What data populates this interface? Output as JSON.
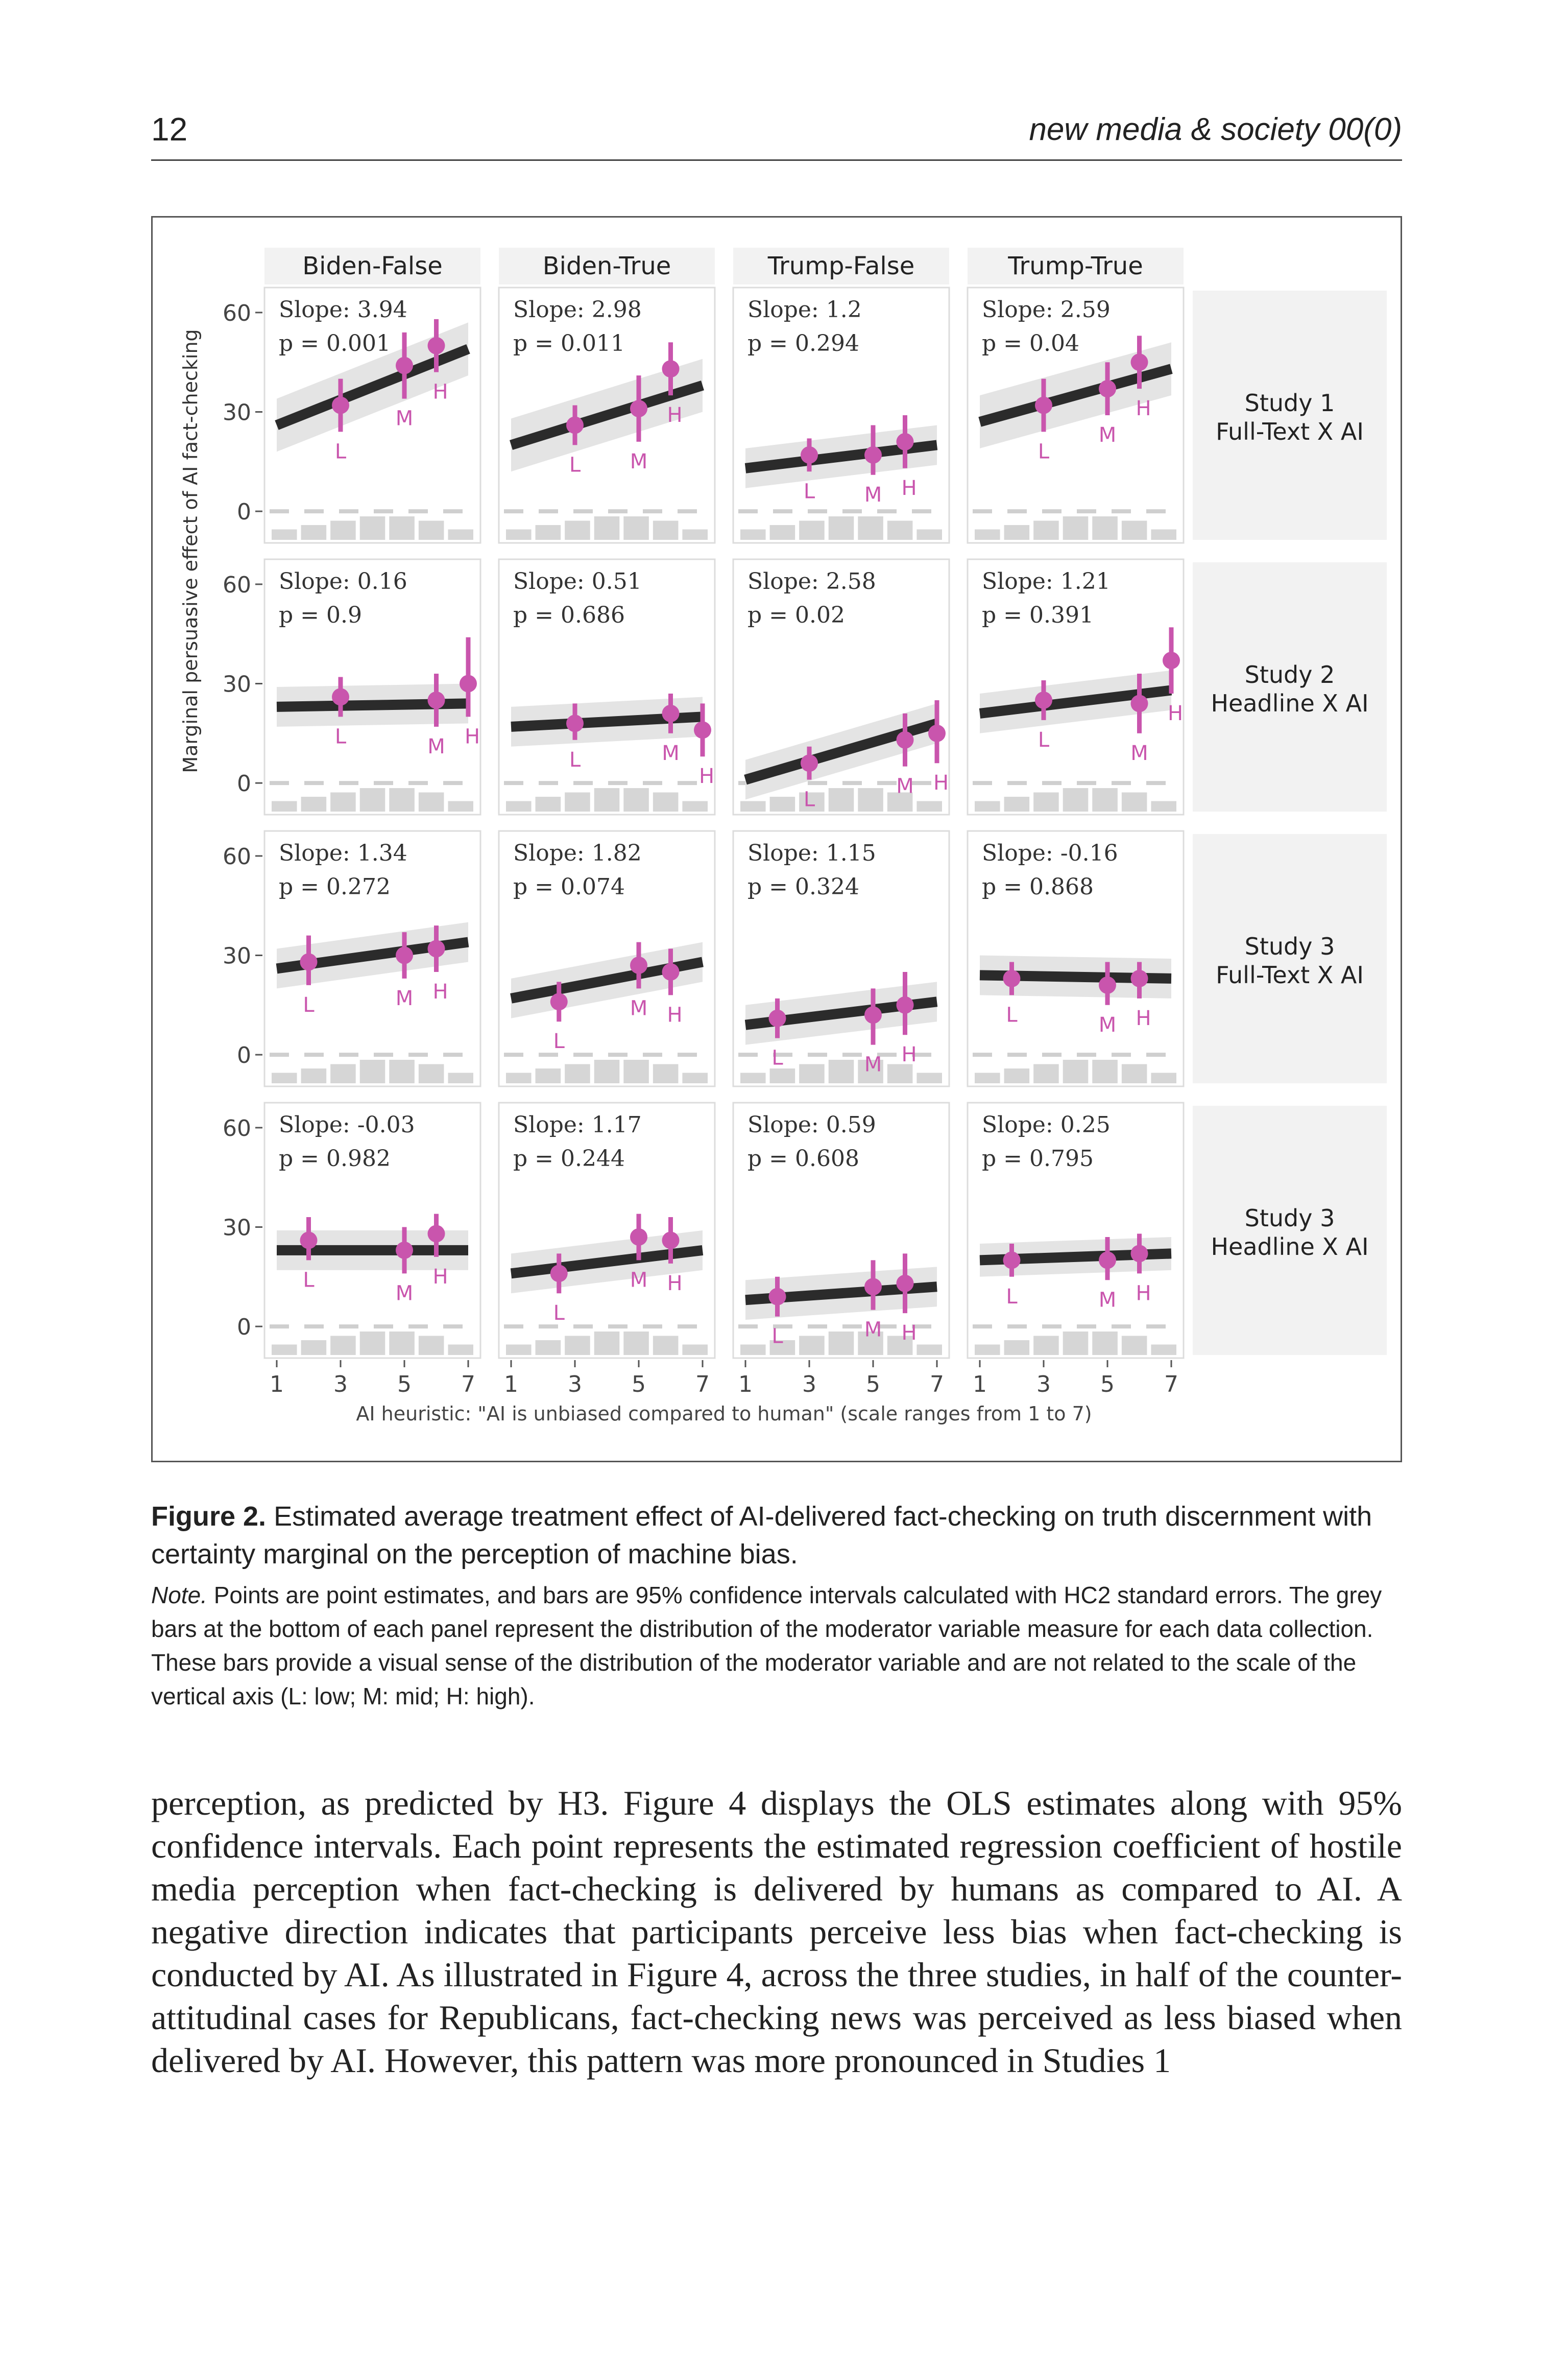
{
  "header": {
    "page_number": "12",
    "journal": "new media & society 00(0)"
  },
  "figure": {
    "column_headers": [
      "Biden-False",
      "Biden-True",
      "Trump-False",
      "Trump-True"
    ],
    "row_labels": [
      [
        "Study 1",
        "Full-Text X AI"
      ],
      [
        "Study 2",
        "Headline X AI"
      ],
      [
        "Study 3",
        "Full-Text X AI"
      ],
      [
        "Study 3",
        "Headline X AI"
      ]
    ],
    "y_axis_label": "Marginal persuasive effect of AI fact-checking",
    "x_axis_label": "AI heuristic: \"AI is unbiased compared to human\" (scale ranges from 1 to 7)"
  },
  "chart_data": {
    "type": "line",
    "xlim": [
      1,
      7
    ],
    "ylim": [
      -8,
      66
    ],
    "x_ticks": [
      1,
      3,
      5,
      7
    ],
    "y_ticks": [
      0,
      30,
      60
    ],
    "point_labels": [
      "L",
      "M",
      "H"
    ],
    "colors": {
      "line": "#2b2b2b",
      "band": "#e4e4e4",
      "points": "#c955ad",
      "hist": "#d6d6d6",
      "panel_bg": "#f2f2f2"
    },
    "panels": [
      {
        "row": 0,
        "col": 0,
        "slope_text": "Slope: 3.94",
        "p_text": "p = 0.001",
        "line": [
          [
            1,
            26
          ],
          [
            7,
            49
          ]
        ],
        "band": [
          8,
          8
        ],
        "points": [
          {
            "x": 3,
            "y": 32,
            "lo": 24,
            "hi": 40
          },
          {
            "x": 5,
            "y": 44,
            "lo": 34,
            "hi": 54
          },
          {
            "x": 6,
            "y": 50,
            "lo": 42,
            "hi": 58
          }
        ]
      },
      {
        "row": 0,
        "col": 1,
        "slope_text": "Slope: 2.98",
        "p_text": "p = 0.011",
        "line": [
          [
            1,
            20
          ],
          [
            7,
            38
          ]
        ],
        "band": [
          8,
          8
        ],
        "points": [
          {
            "x": 3,
            "y": 26,
            "lo": 20,
            "hi": 32
          },
          {
            "x": 5,
            "y": 31,
            "lo": 21,
            "hi": 41
          },
          {
            "x": 6,
            "y": 43,
            "lo": 35,
            "hi": 51
          }
        ]
      },
      {
        "row": 0,
        "col": 2,
        "slope_text": "Slope: 1.2",
        "p_text": "p = 0.294",
        "line": [
          [
            1,
            13
          ],
          [
            7,
            20
          ]
        ],
        "band": [
          6,
          6
        ],
        "points": [
          {
            "x": 3,
            "y": 17,
            "lo": 12,
            "hi": 22
          },
          {
            "x": 5,
            "y": 17,
            "lo": 11,
            "hi": 26
          },
          {
            "x": 6,
            "y": 21,
            "lo": 13,
            "hi": 29
          }
        ]
      },
      {
        "row": 0,
        "col": 3,
        "slope_text": "Slope: 2.59",
        "p_text": "p = 0.04",
        "line": [
          [
            1,
            27
          ],
          [
            7,
            43
          ]
        ],
        "band": [
          8,
          8
        ],
        "points": [
          {
            "x": 3,
            "y": 32,
            "lo": 24,
            "hi": 40
          },
          {
            "x": 5,
            "y": 37,
            "lo": 29,
            "hi": 45
          },
          {
            "x": 6,
            "y": 45,
            "lo": 37,
            "hi": 53
          }
        ]
      },
      {
        "row": 1,
        "col": 0,
        "slope_text": "Slope: 0.16",
        "p_text": "p = 0.9",
        "line": [
          [
            1,
            23
          ],
          [
            7,
            24
          ]
        ],
        "band": [
          6,
          6
        ],
        "points": [
          {
            "x": 3,
            "y": 26,
            "lo": 20,
            "hi": 32
          },
          {
            "x": 6,
            "y": 25,
            "lo": 17,
            "hi": 33
          },
          {
            "x": 7,
            "y": 30,
            "lo": 20,
            "hi": 44
          }
        ]
      },
      {
        "row": 1,
        "col": 1,
        "slope_text": "Slope: 0.51",
        "p_text": "p = 0.686",
        "line": [
          [
            1,
            17
          ],
          [
            7,
            20
          ]
        ],
        "band": [
          6,
          6
        ],
        "points": [
          {
            "x": 3,
            "y": 18,
            "lo": 13,
            "hi": 24
          },
          {
            "x": 6,
            "y": 21,
            "lo": 15,
            "hi": 27
          },
          {
            "x": 7,
            "y": 16,
            "lo": 8,
            "hi": 24
          }
        ]
      },
      {
        "row": 1,
        "col": 2,
        "slope_text": "Slope: 2.58",
        "p_text": "p = 0.02",
        "line": [
          [
            1,
            1
          ],
          [
            7,
            18
          ]
        ],
        "band": [
          6,
          6
        ],
        "points": [
          {
            "x": 3,
            "y": 6,
            "lo": 1,
            "hi": 11
          },
          {
            "x": 6,
            "y": 13,
            "lo": 5,
            "hi": 21
          },
          {
            "x": 7,
            "y": 15,
            "lo": 6,
            "hi": 25
          }
        ]
      },
      {
        "row": 1,
        "col": 3,
        "slope_text": "Slope: 1.21",
        "p_text": "p = 0.391",
        "line": [
          [
            1,
            21
          ],
          [
            7,
            28
          ]
        ],
        "band": [
          6,
          6
        ],
        "points": [
          {
            "x": 3,
            "y": 25,
            "lo": 19,
            "hi": 31
          },
          {
            "x": 6,
            "y": 24,
            "lo": 15,
            "hi": 33
          },
          {
            "x": 7,
            "y": 37,
            "lo": 27,
            "hi": 47
          }
        ]
      },
      {
        "row": 2,
        "col": 0,
        "slope_text": "Slope: 1.34",
        "p_text": "p = 0.272",
        "line": [
          [
            1,
            26
          ],
          [
            7,
            34
          ]
        ],
        "band": [
          6,
          6
        ],
        "points": [
          {
            "x": 2,
            "y": 28,
            "lo": 21,
            "hi": 36
          },
          {
            "x": 5,
            "y": 30,
            "lo": 23,
            "hi": 37
          },
          {
            "x": 6,
            "y": 32,
            "lo": 25,
            "hi": 39
          }
        ]
      },
      {
        "row": 2,
        "col": 1,
        "slope_text": "Slope: 1.82",
        "p_text": "p = 0.074",
        "line": [
          [
            1,
            17
          ],
          [
            7,
            28
          ]
        ],
        "band": [
          6,
          6
        ],
        "points": [
          {
            "x": 2.5,
            "y": 16,
            "lo": 10,
            "hi": 22
          },
          {
            "x": 5,
            "y": 27,
            "lo": 20,
            "hi": 34
          },
          {
            "x": 6,
            "y": 25,
            "lo": 18,
            "hi": 32
          }
        ]
      },
      {
        "row": 2,
        "col": 2,
        "slope_text": "Slope: 1.15",
        "p_text": "p = 0.324",
        "line": [
          [
            1,
            9
          ],
          [
            7,
            16
          ]
        ],
        "band": [
          6,
          6
        ],
        "points": [
          {
            "x": 2,
            "y": 11,
            "lo": 5,
            "hi": 17
          },
          {
            "x": 5,
            "y": 12,
            "lo": 3,
            "hi": 20
          },
          {
            "x": 6,
            "y": 15,
            "lo": 6,
            "hi": 25
          }
        ]
      },
      {
        "row": 2,
        "col": 3,
        "slope_text": "Slope: -0.16",
        "p_text": "p = 0.868",
        "line": [
          [
            1,
            24
          ],
          [
            7,
            23
          ]
        ],
        "band": [
          6,
          6
        ],
        "points": [
          {
            "x": 2,
            "y": 23,
            "lo": 18,
            "hi": 28
          },
          {
            "x": 5,
            "y": 21,
            "lo": 15,
            "hi": 28
          },
          {
            "x": 6,
            "y": 23,
            "lo": 17,
            "hi": 28
          }
        ]
      },
      {
        "row": 3,
        "col": 0,
        "slope_text": "Slope: -0.03",
        "p_text": "p = 0.982",
        "line": [
          [
            1,
            23
          ],
          [
            7,
            23
          ]
        ],
        "band": [
          6,
          6
        ],
        "points": [
          {
            "x": 2,
            "y": 26,
            "lo": 20,
            "hi": 33
          },
          {
            "x": 5,
            "y": 23,
            "lo": 16,
            "hi": 30
          },
          {
            "x": 6,
            "y": 28,
            "lo": 21,
            "hi": 34
          }
        ]
      },
      {
        "row": 3,
        "col": 1,
        "slope_text": "Slope: 1.17",
        "p_text": "p = 0.244",
        "line": [
          [
            1,
            16
          ],
          [
            7,
            23
          ]
        ],
        "band": [
          6,
          6
        ],
        "points": [
          {
            "x": 2.5,
            "y": 16,
            "lo": 10,
            "hi": 22
          },
          {
            "x": 5,
            "y": 27,
            "lo": 20,
            "hi": 34
          },
          {
            "x": 6,
            "y": 26,
            "lo": 19,
            "hi": 33
          }
        ]
      },
      {
        "row": 3,
        "col": 2,
        "slope_text": "Slope: 0.59",
        "p_text": "p = 0.608",
        "line": [
          [
            1,
            8
          ],
          [
            7,
            12
          ]
        ],
        "band": [
          6,
          6
        ],
        "points": [
          {
            "x": 2,
            "y": 9,
            "lo": 3,
            "hi": 15
          },
          {
            "x": 5,
            "y": 12,
            "lo": 5,
            "hi": 20
          },
          {
            "x": 6,
            "y": 13,
            "lo": 4,
            "hi": 22
          }
        ]
      },
      {
        "row": 3,
        "col": 3,
        "slope_text": "Slope: 0.25",
        "p_text": "p = 0.795",
        "line": [
          [
            1,
            20
          ],
          [
            7,
            22
          ]
        ],
        "band": [
          5,
          5
        ],
        "points": [
          {
            "x": 2,
            "y": 20,
            "lo": 15,
            "hi": 25
          },
          {
            "x": 5,
            "y": 20,
            "lo": 14,
            "hi": 27
          },
          {
            "x": 6,
            "y": 22,
            "lo": 16,
            "hi": 28
          }
        ]
      }
    ],
    "histogram": [
      1,
      2,
      3,
      4,
      4,
      3,
      1
    ]
  },
  "caption": {
    "label": "Figure 2.",
    "title": "Estimated average treatment effect of AI-delivered fact-checking on truth discernment with certainty marginal on the perception of machine bias.",
    "note_label": "Note.",
    "note": "Points are point estimates, and bars are 95% confidence intervals calculated with HC2 standard errors. The grey bars at the bottom of each panel represent the distribution of the moderator variable measure for each data collection. These bars provide a visual sense of the distribution of the moderator variable and are not related to the scale of the vertical axis (L: low; M: mid; H: high)."
  },
  "body_text": "perception, as predicted by H3. Figure 4 displays the OLS estimates along with 95% confidence intervals. Each point represents the estimated regression coefficient of hostile media perception when fact-checking is delivered by humans as compared to AI. A negative direction indicates that participants perceive less bias when fact-checking is conducted by AI. As illustrated in Figure 4, across the three studies, in half of the counter-attitudinal cases for Republicans, fact-checking news was perceived as less biased when delivered by AI. However, this pattern was more pronounced in Studies 1"
}
